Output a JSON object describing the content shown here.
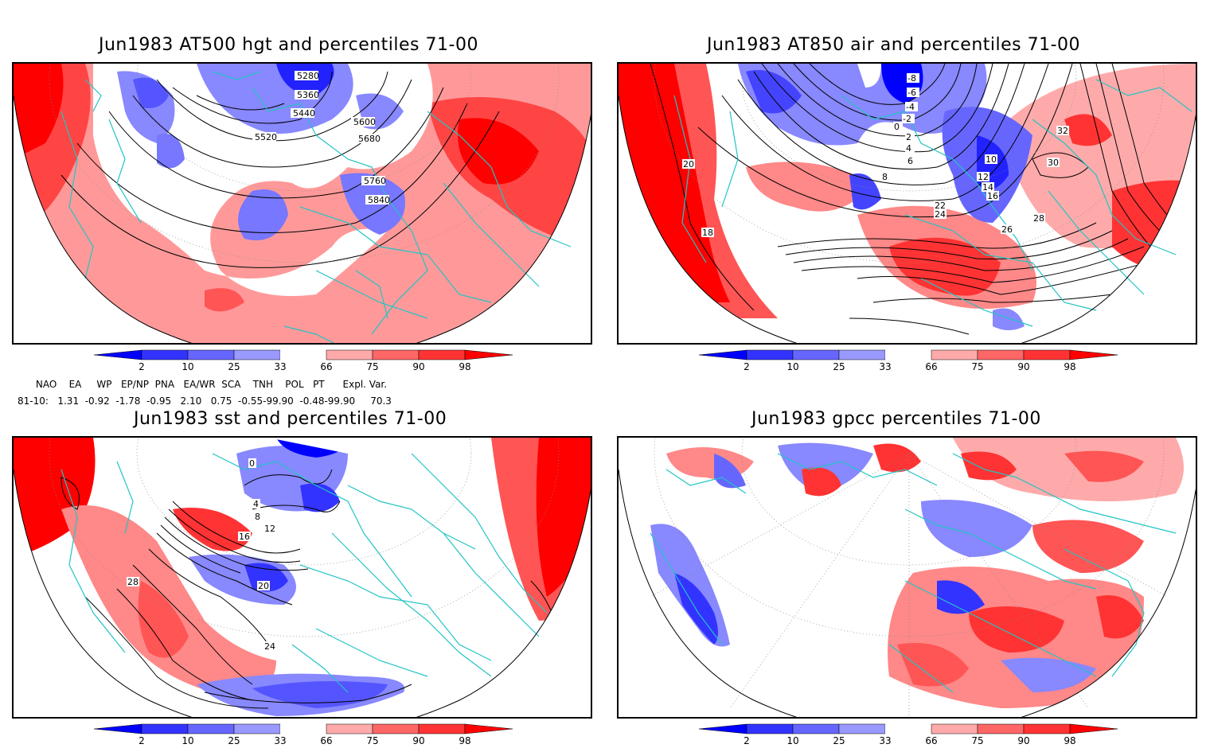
{
  "panels": [
    {
      "title": "Jun1983 AT500 hgt and percentiles 71-00",
      "contour_labels": [
        "5280",
        "5360",
        "5440",
        "5520",
        "5600",
        "5680",
        "5760",
        "5840"
      ]
    },
    {
      "title": "Jun1983 AT850 air and percentiles 71-00",
      "contour_labels": [
        "-8",
        "-6",
        "-4",
        "-2",
        "0",
        "2",
        "4",
        "6",
        "8",
        "10",
        "12",
        "14",
        "16",
        "18",
        "20",
        "22",
        "24",
        "26",
        "28",
        "30",
        "32"
      ]
    },
    {
      "title": "Jun1983 sst and percentiles 71-00",
      "contour_labels": [
        "0",
        "4",
        "8",
        "12",
        "16",
        "20",
        "24",
        "28"
      ]
    },
    {
      "title": "Jun1983 gpcc percentiles 71-00",
      "contour_labels": []
    }
  ],
  "colorbar": {
    "labels": [
      "2",
      "10",
      "25",
      "33",
      "66",
      "75",
      "90",
      "98"
    ],
    "colors": [
      "#0000ff",
      "#3333ff",
      "#6666ff",
      "#9999ff",
      "#ffffff",
      "#ffaaaa",
      "#ff6666",
      "#ff3333",
      "#ff0000"
    ]
  },
  "indices": {
    "header": "      NAO    EA     WP   EP/NP  PNA   EA/WR  SCA    TNH    POL   PT      Expl. Var.",
    "row": "81-10:   1.31  -0.92  -1.78  -0.95   2.10   0.75  -0.55-99.90  -0.48-99.90     70.3"
  }
}
